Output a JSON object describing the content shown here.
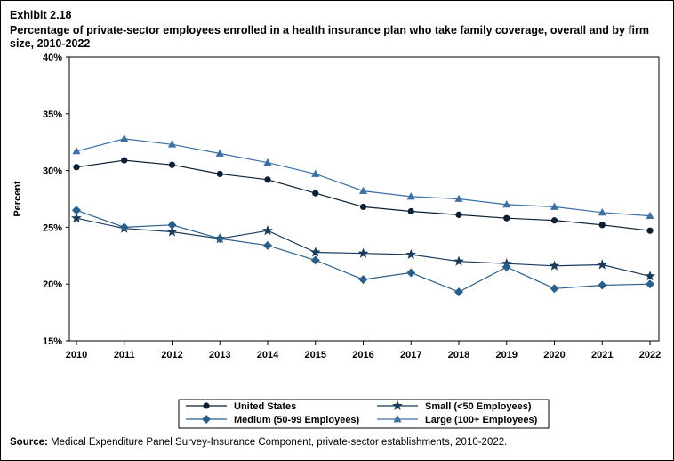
{
  "exhibit": "Exhibit 2.18",
  "title": "Percentage of private-sector employees enrolled in a health insurance plan who take family coverage, overall and by firm size, 2010-2022",
  "source_label": "Source:",
  "source_text": "Medical Expenditure Panel Survey-Insurance Component, private-sector establishments, 2010-2022.",
  "chart_data": {
    "type": "line",
    "ylabel": "Percent",
    "xlabel": "",
    "ylim": [
      15,
      40
    ],
    "yticks": [
      15,
      20,
      25,
      30,
      35,
      40
    ],
    "ytick_labels": [
      "15%",
      "20%",
      "25%",
      "30%",
      "35%",
      "40%"
    ],
    "x": [
      "2010",
      "2011",
      "2012",
      "2013",
      "2014",
      "2015",
      "2016",
      "2017",
      "2018",
      "2019",
      "2020",
      "2021",
      "2022"
    ],
    "legend_placement": "bottom",
    "series": [
      {
        "name": "United States",
        "marker": "circle",
        "color": "#0b1e33",
        "values": [
          30.3,
          30.9,
          30.5,
          29.7,
          29.2,
          28.0,
          26.8,
          26.4,
          26.1,
          25.8,
          25.6,
          25.2,
          24.7
        ]
      },
      {
        "name": "Small (<50 Employees)",
        "marker": "star",
        "color": "#1a3a5c",
        "values": [
          25.8,
          24.9,
          24.6,
          24.0,
          24.7,
          22.8,
          22.7,
          22.6,
          22.0,
          21.8,
          21.6,
          21.7,
          20.7
        ]
      },
      {
        "name": "Medium (50-99 Employees)",
        "marker": "diamond",
        "color": "#2a5f8a",
        "values": [
          26.5,
          25.0,
          25.2,
          24.0,
          23.4,
          22.1,
          20.4,
          21.0,
          19.3,
          21.5,
          19.6,
          19.9,
          20.0
        ]
      },
      {
        "name": "Large (100+ Employees)",
        "marker": "triangle",
        "color": "#3c6fa3",
        "values": [
          31.7,
          32.8,
          32.3,
          31.5,
          30.7,
          29.7,
          28.2,
          27.7,
          27.5,
          27.0,
          26.8,
          26.3,
          26.0
        ]
      }
    ]
  }
}
